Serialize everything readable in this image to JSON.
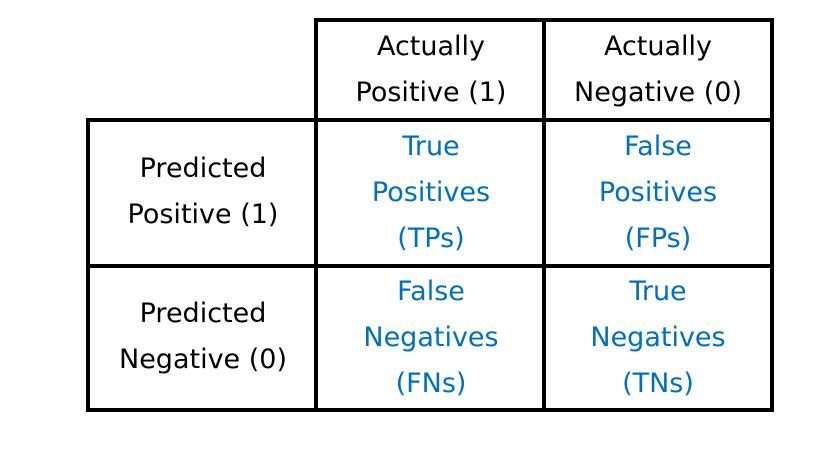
{
  "columns": [
    {
      "lines": [
        "Actually",
        "Positive (1)"
      ]
    },
    {
      "lines": [
        "Actually",
        "Negative (0)"
      ]
    }
  ],
  "rows": [
    {
      "lines": [
        "Predicted",
        "Positive (1)"
      ],
      "cells": [
        {
          "lines": [
            "True",
            "Positives",
            "(TPs)"
          ]
        },
        {
          "lines": [
            "False",
            "Positives",
            "(FPs)"
          ]
        }
      ]
    },
    {
      "lines": [
        "Predicted",
        "Negative (0)"
      ],
      "cells": [
        {
          "lines": [
            "False",
            "Negatives",
            "(FNs)"
          ]
        },
        {
          "lines": [
            "True",
            "Negatives",
            "(TNs)"
          ]
        }
      ]
    }
  ],
  "colors": {
    "outcome_text": "#0070c0",
    "label_text": "#000000",
    "grid_lines": "#000000"
  }
}
